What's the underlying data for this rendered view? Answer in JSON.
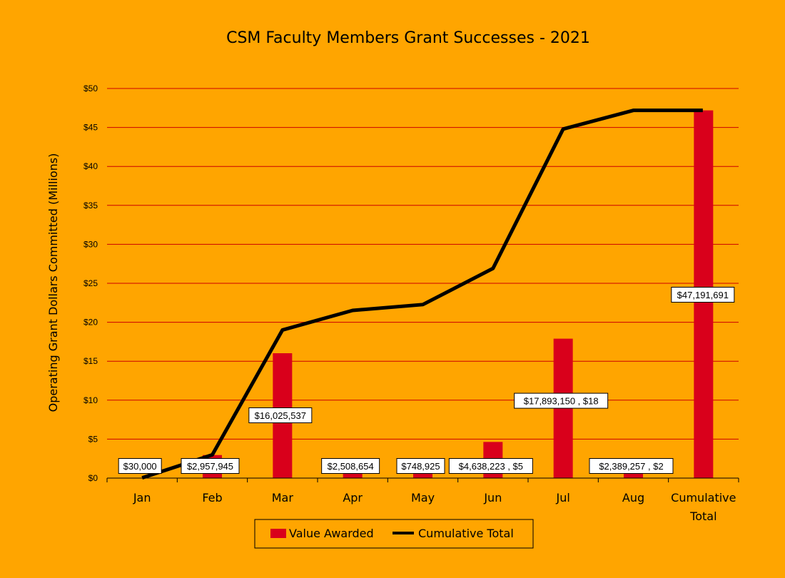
{
  "chart_data": {
    "type": "bar",
    "title": "CSM Faculty Members Grant Successes - 2021",
    "xlabel": "",
    "ylabel": "Operating Grant Dollars Committed (Millions)",
    "ylim": [
      0,
      50
    ],
    "yticks": [
      "$0",
      "$5",
      "$10",
      "$15",
      "$20",
      "$25",
      "$30",
      "$35",
      "$40",
      "$45",
      "$50"
    ],
    "grid": true,
    "legend_position": "bottom",
    "categories": [
      "Jan",
      "Feb",
      "Mar",
      "Apr",
      "May",
      "Jun",
      "Jul",
      "Aug",
      "Cumulative\nTotal"
    ],
    "series": [
      {
        "name": "Value Awarded",
        "type": "bar",
        "color": "#D9001B",
        "values": [
          0.03,
          2.957945,
          16.025537,
          2.508654,
          0.748925,
          4.638223,
          17.89315,
          2.389257,
          47.191691
        ],
        "labels": [
          "$30,000",
          "$2,957,945",
          "$16,025,537",
          "$2,508,654",
          "$748,925",
          "$4,638,223 , $5",
          "$17,893,150 , $18",
          "$2,389,257 , $2",
          "$47,191,691"
        ]
      },
      {
        "name": "Cumulative Total",
        "type": "line",
        "color": "#000000",
        "values": [
          0.03,
          2.99,
          19.01,
          21.52,
          22.27,
          26.91,
          44.8,
          47.19,
          47.19
        ]
      }
    ]
  }
}
